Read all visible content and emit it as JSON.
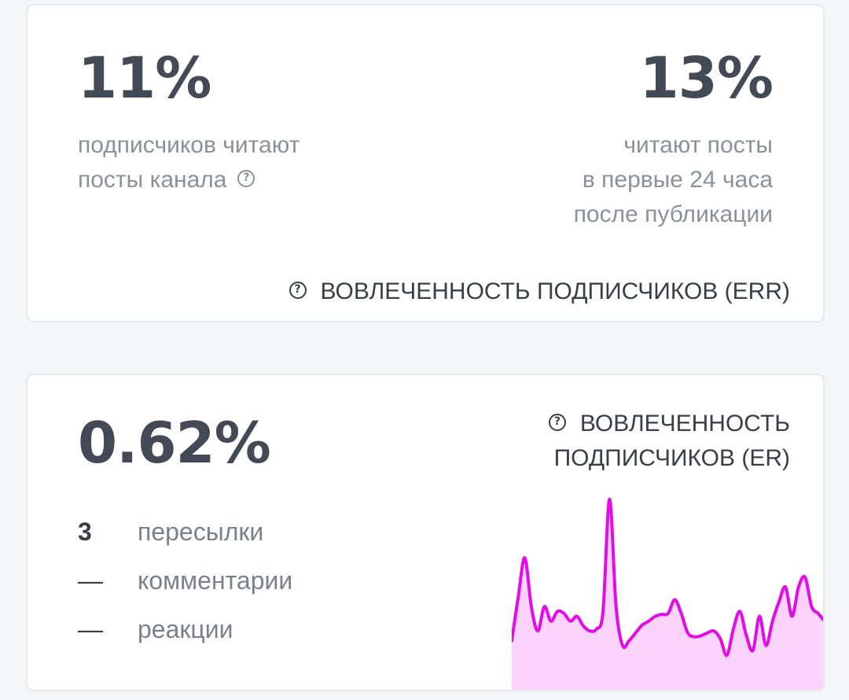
{
  "err_card": {
    "left_value": "11%",
    "left_desc": [
      "подписчиков читают",
      "посты канала"
    ],
    "right_value": "13%",
    "right_desc": [
      "читают посты",
      "в первые 24 часа",
      "после публикации"
    ],
    "title": "ВОВЛЕЧЕННОСТЬ ПОДПИСЧИКОВ (ERR)",
    "help_icon": "question-circle-icon"
  },
  "er_card": {
    "value": "0.62%",
    "title": [
      "ВОВЛЕЧЕННОСТЬ",
      "ПОДПИСЧИКОВ (ER)"
    ],
    "stats": [
      {
        "value": "3",
        "label": "пересылки"
      },
      {
        "value": "—",
        "label": "комментарии"
      },
      {
        "value": "—",
        "label": "реакции"
      }
    ],
    "sparkline_color": "#e10ce8",
    "sparkline_fill": "#fbd3fb"
  },
  "colors": {
    "background": "#f5f6f9",
    "card": "#ffffff",
    "text_dark": "#434a56",
    "text_muted": "#8b9099"
  },
  "chart_data": {
    "type": "area",
    "series": [
      {
        "values": [
          0.1,
          0.55,
          0.95,
          0.45,
          0.2,
          0.45,
          0.3,
          0.4,
          0.38,
          0.3,
          0.35,
          0.25,
          0.2,
          0.22,
          0.4,
          1.55,
          0.45,
          0.05,
          0.1,
          0.18,
          0.26,
          0.3,
          0.35,
          0.37,
          0.38,
          0.52,
          0.38,
          0.18,
          0.14,
          0.15,
          0.18,
          0.2,
          0.12,
          -0.05,
          0.22,
          0.4,
          0.15,
          0.0,
          0.35,
          0.05,
          0.3,
          0.5,
          0.65,
          0.35,
          0.65,
          0.75,
          0.45,
          0.38,
          0.3
        ]
      }
    ]
  }
}
